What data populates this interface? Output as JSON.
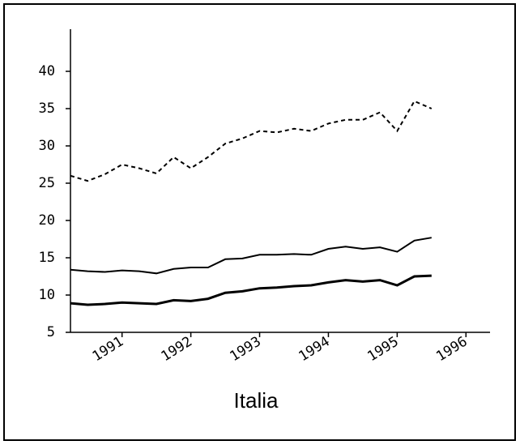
{
  "chart_data": {
    "type": "line",
    "title": "Italia",
    "x": [
      1990.25,
      1990.5,
      1990.75,
      1991.0,
      1991.25,
      1991.5,
      1991.75,
      1992.0,
      1992.25,
      1992.5,
      1992.75,
      1993.0,
      1993.25,
      1993.5,
      1993.75,
      1994.0,
      1994.25,
      1994.5,
      1994.75,
      1995.0,
      1995.25,
      1995.5
    ],
    "series": [
      {
        "color": "#000000",
        "dashed": true,
        "values": [
          26,
          25.3,
          26.2,
          27.5,
          27,
          26.3,
          28.5,
          27,
          28.5,
          30.3,
          31,
          32,
          31.8,
          32.3,
          32,
          33,
          33.5,
          33.5,
          34.5,
          32,
          36,
          35
        ]
      },
      {
        "color": "#000000",
        "dashed": false,
        "values": [
          13.4,
          13.2,
          13.1,
          13.3,
          13.2,
          12.9,
          13.5,
          13.7,
          13.7,
          14.8,
          14.9,
          15.4,
          15.4,
          15.5,
          15.4,
          16.2,
          16.5,
          16.2,
          16.4,
          15.8,
          17.3,
          17.7
        ]
      },
      {
        "color": "#000000",
        "dashed": false,
        "values": [
          8.9,
          8.7,
          8.8,
          9.0,
          8.9,
          8.8,
          9.3,
          9.2,
          9.5,
          10.3,
          10.5,
          10.9,
          11.0,
          11.2,
          11.3,
          11.7,
          12.0,
          11.8,
          12.0,
          11.3,
          12.5,
          12.6
        ]
      }
    ],
    "xlim": [
      1990.25,
      1996.35
    ],
    "xticks": [
      1991,
      1992,
      1993,
      1994,
      1995,
      1996
    ],
    "ylim": [
      5,
      45
    ],
    "yticks": [
      5,
      10,
      15,
      20,
      25,
      30,
      35,
      40
    ],
    "grid": false
  }
}
